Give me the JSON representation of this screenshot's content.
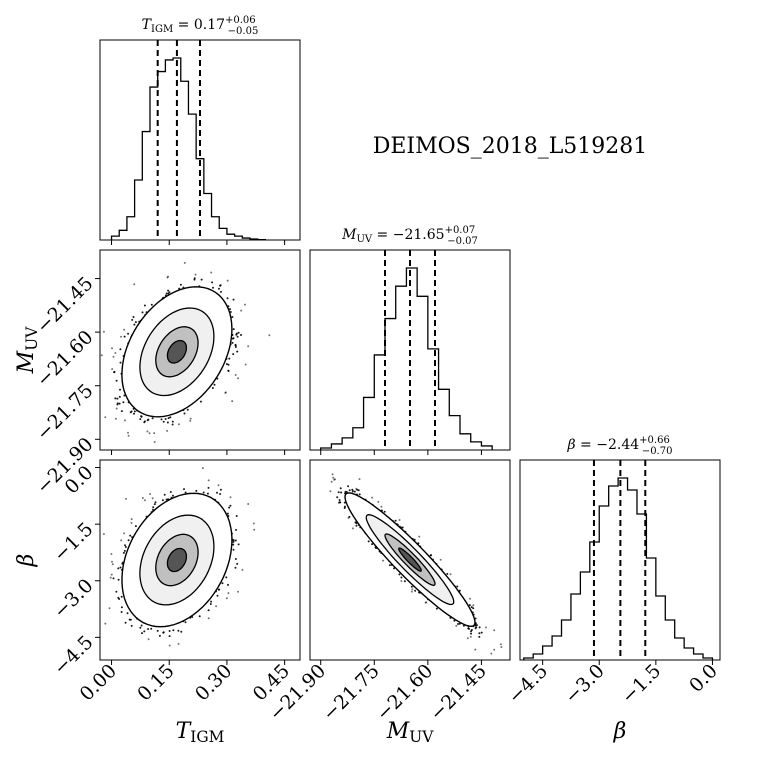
{
  "chart_data": {
    "type": "corner",
    "target_name": "DEIMOS_2018_L519281",
    "params": [
      {
        "key": "T",
        "label": "T",
        "label_sub": "IGM",
        "ticks": [
          "0.00",
          "0.15",
          "0.30",
          "0.45"
        ],
        "tick_values": [
          0.0,
          0.15,
          0.3,
          0.45
        ],
        "range": [
          -0.03,
          0.49
        ],
        "median": 0.17,
        "q16": 0.12,
        "q84": 0.23,
        "title": {
          "prefix": "T",
          "sub": "IGM",
          "eq": " = 0.17",
          "plus": "+0.06",
          "minus": "−0.05"
        },
        "hist_edges": [
          0.0,
          0.02,
          0.04,
          0.06,
          0.08,
          0.1,
          0.12,
          0.14,
          0.16,
          0.18,
          0.2,
          0.22,
          0.24,
          0.26,
          0.28,
          0.3,
          0.32,
          0.34,
          0.36,
          0.38,
          0.4
        ],
        "hist_counts": [
          0.02,
          0.05,
          0.12,
          0.31,
          0.56,
          0.79,
          0.87,
          0.93,
          0.94,
          0.82,
          0.65,
          0.42,
          0.24,
          0.12,
          0.06,
          0.03,
          0.02,
          0.01,
          0.005,
          0.002
        ]
      },
      {
        "key": "M",
        "label": "M",
        "label_sub": "UV",
        "ticks": [
          "−21.90",
          "−21.75",
          "−21.60",
          "−21.45"
        ],
        "tick_values": [
          -21.9,
          -21.75,
          -21.6,
          -21.45
        ],
        "range": [
          -21.93,
          -21.37
        ],
        "median": -21.65,
        "q16": -21.72,
        "q84": -21.58,
        "title": {
          "prefix": "M",
          "sub": "UV",
          "eq": " = −21.65",
          "plus": "+0.07",
          "minus": "−0.07"
        },
        "hist_edges": [
          -21.9,
          -21.87,
          -21.84,
          -21.81,
          -21.78,
          -21.75,
          -21.72,
          -21.69,
          -21.66,
          -21.63,
          -21.6,
          -21.57,
          -21.54,
          -21.51,
          -21.48,
          -21.45,
          -21.42
        ],
        "hist_counts": [
          0.01,
          0.03,
          0.06,
          0.11,
          0.26,
          0.47,
          0.65,
          0.81,
          0.9,
          0.76,
          0.5,
          0.3,
          0.17,
          0.08,
          0.04,
          0.02
        ]
      },
      {
        "key": "B",
        "label": "β",
        "label_sub": "",
        "ticks": [
          "−4.5",
          "−3.0",
          "−1.5",
          "0.0"
        ],
        "tick_values": [
          -4.5,
          -3.0,
          -1.5,
          0.0
        ],
        "range": [
          -5.1,
          0.2
        ],
        "median": -2.44,
        "q16": -3.14,
        "q84": -1.78,
        "title": {
          "prefix": "β",
          "sub": "",
          "eq": " = −2.44",
          "plus": "+0.66",
          "minus": "−0.70"
        },
        "hist_edges": [
          -5.0,
          -4.75,
          -4.5,
          -4.25,
          -4.0,
          -3.75,
          -3.5,
          -3.25,
          -3.0,
          -2.75,
          -2.5,
          -2.25,
          -2.0,
          -1.75,
          -1.5,
          -1.25,
          -1.0,
          -0.75,
          -0.5,
          -0.25,
          0.0
        ],
        "hist_counts": [
          0.01,
          0.03,
          0.07,
          0.12,
          0.2,
          0.33,
          0.44,
          0.59,
          0.77,
          0.87,
          0.91,
          0.85,
          0.73,
          0.51,
          0.32,
          0.2,
          0.11,
          0.06,
          0.03,
          0.01
        ]
      }
    ],
    "pairs": [
      {
        "x": "T",
        "y": "M",
        "center": [
          0.17,
          -21.655
        ],
        "sd": [
          0.055,
          0.07
        ],
        "rho": 0.35
      },
      {
        "x": "T",
        "y": "B",
        "center": [
          0.17,
          -2.45
        ],
        "sd": [
          0.055,
          0.68
        ],
        "rho": 0.3
      },
      {
        "x": "M",
        "y": "B",
        "center": [
          -21.65,
          -2.44
        ],
        "sd": [
          0.07,
          0.68
        ],
        "rho": -0.94
      }
    ],
    "contour_levels": [
      0.393,
      0.865,
      0.989
    ],
    "quantile_line_style": "dashed",
    "grid": false,
    "legend": "none"
  }
}
